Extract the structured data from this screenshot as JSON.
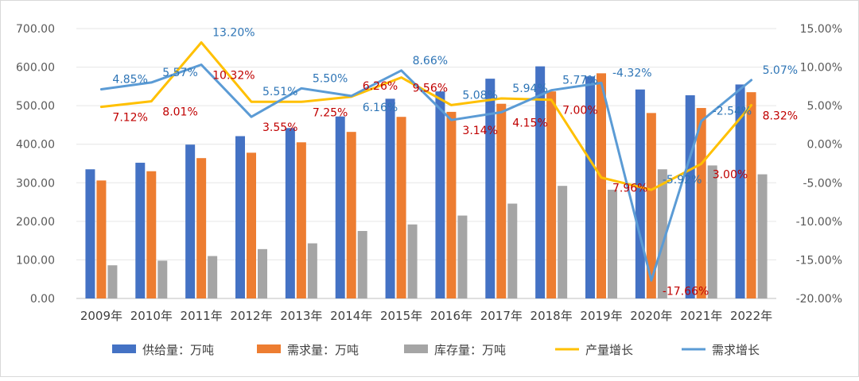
{
  "chart_data": {
    "type": "bar",
    "categories": [
      "2009年",
      "2010年",
      "2011年",
      "2012年",
      "2013年",
      "2014年",
      "2015年",
      "2016年",
      "2017年",
      "2018年",
      "2019年",
      "2020年",
      "2021年",
      "2022年"
    ],
    "series": [
      {
        "name": "供给量：万吨",
        "type": "bar",
        "axis": "left",
        "color": "#4472C4",
        "values": [
          335,
          352,
          399,
          421,
          442,
          472,
          518,
          537,
          570,
          602,
          576,
          542,
          527,
          555
        ]
      },
      {
        "name": "需求量：万吨",
        "type": "bar",
        "axis": "left",
        "color": "#ED7D31",
        "values": [
          306,
          330,
          364,
          378,
          405,
          432,
          471,
          484,
          505,
          537,
          584,
          481,
          494,
          535
        ]
      },
      {
        "name": "库存量：万吨",
        "type": "bar",
        "axis": "left",
        "color": "#A5A5A5",
        "values": [
          86,
          98,
          110,
          128,
          143,
          175,
          192,
          215,
          246,
          292,
          282,
          335,
          345,
          322
        ]
      },
      {
        "name": "产量增长",
        "type": "line",
        "axis": "right",
        "color": "#FFC000",
        "values": [
          4.85,
          5.57,
          13.2,
          5.51,
          5.5,
          6.16,
          8.66,
          5.08,
          5.94,
          5.77,
          -4.32,
          -5.92,
          -2.54,
          5.07
        ]
      },
      {
        "name": "需求增长",
        "type": "line",
        "axis": "right",
        "color": "#5B9BD5",
        "values": [
          7.12,
          8.01,
          10.32,
          3.55,
          7.25,
          6.26,
          9.56,
          3.14,
          4.15,
          7.0,
          7.96,
          -17.66,
          3.0,
          8.32
        ]
      }
    ],
    "data_labels": [
      {
        "text": "7.12%",
        "color": "#C00000"
      },
      {
        "text": "4.85%",
        "color": "#2E75B6"
      },
      {
        "text": "8.01%",
        "color": "#C00000"
      },
      {
        "text": "5.57%",
        "color": "#2E75B6"
      },
      {
        "text": "13.20%",
        "color": "#2E75B6"
      },
      {
        "text": "10.32%",
        "color": "#C00000"
      },
      {
        "text": "5.51%",
        "color": "#2E75B6"
      },
      {
        "text": "3.55%",
        "color": "#C00000"
      },
      {
        "text": "7.25%",
        "color": "#C00000"
      },
      {
        "text": "5.50%",
        "color": "#2E75B6"
      },
      {
        "text": "6.16%",
        "color": "#2E75B6"
      },
      {
        "text": "6.26%",
        "color": "#C00000"
      },
      {
        "text": "9.56%",
        "color": "#C00000"
      },
      {
        "text": "8.66%",
        "color": "#2E75B6"
      },
      {
        "text": "5.08%",
        "color": "#2E75B6"
      },
      {
        "text": "3.14%",
        "color": "#C00000"
      },
      {
        "text": "5.94%",
        "color": "#2E75B6"
      },
      {
        "text": "4.15%",
        "color": "#C00000"
      },
      {
        "text": "7.00%",
        "color": "#C00000"
      },
      {
        "text": "5.77%",
        "color": "#2E75B6"
      },
      {
        "text": "7.96%",
        "color": "#C00000"
      },
      {
        "text": "-4.32%",
        "color": "#2E75B6"
      },
      {
        "text": "-5.92%",
        "color": "#2E75B6"
      },
      {
        "text": "-17.66%",
        "color": "#C00000"
      },
      {
        "text": "3.00%",
        "color": "#C00000"
      },
      {
        "text": "-2.54%",
        "color": "#2E75B6"
      },
      {
        "text": "8.32%",
        "color": "#C00000"
      },
      {
        "text": "5.07%",
        "color": "#2E75B6"
      }
    ],
    "y_left": {
      "min": 0,
      "max": 700,
      "step": 100,
      "ticks": [
        "0.00",
        "100.00",
        "200.00",
        "300.00",
        "400.00",
        "500.00",
        "600.00",
        "700.00"
      ]
    },
    "y_right": {
      "min": -20,
      "max": 15,
      "step": 5,
      "ticks": [
        "-20.00%",
        "-15.00%",
        "-10.00%",
        "-5.00%",
        "0.00%",
        "5.00%",
        "10.00%",
        "15.00%"
      ]
    },
    "grid": true,
    "legend_position": "bottom"
  }
}
